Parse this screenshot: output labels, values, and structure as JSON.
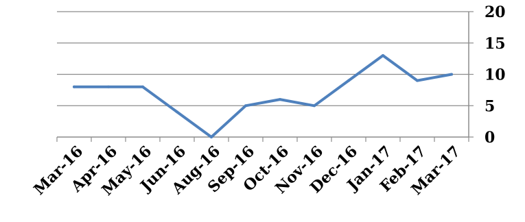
{
  "chart_data": {
    "type": "line",
    "categories": [
      "Mar-16",
      "Apr-16",
      "May-16",
      "Jun-16",
      "Aug-16",
      "Sep-16",
      "Oct-16",
      "Nov-16",
      "Dec-16",
      "Jan-17",
      "Feb-17",
      "Mar-17"
    ],
    "series": [
      {
        "values": [
          8,
          8,
          8,
          4,
          0,
          5,
          6,
          5,
          9,
          13,
          9,
          10
        ],
        "color": "#4f81bd"
      }
    ],
    "y_ticks": [
      "0",
      "5",
      "10",
      "15",
      "20"
    ],
    "ylim": [
      0,
      20
    ],
    "y_axis_position": "right",
    "grid": true,
    "legend": "none",
    "title": "",
    "xlabel": "",
    "ylabel": ""
  }
}
